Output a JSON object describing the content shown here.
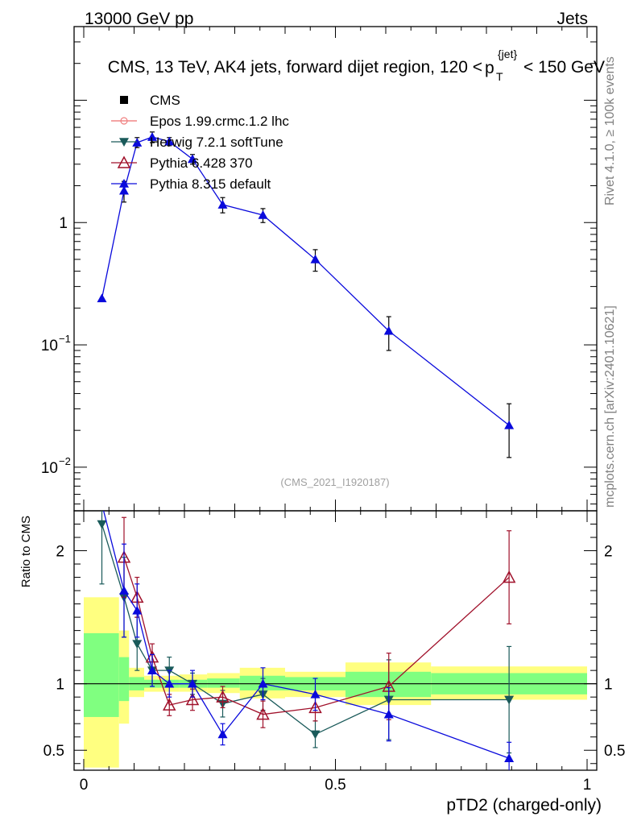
{
  "header": {
    "left": "13000 GeV pp",
    "right": "Jets",
    "title_main": "CMS, 13 TeV, AK4 jets, forward dijet region, 120 <",
    "title_p": "p",
    "title_sup": "{jet}",
    "title_sub": "T",
    "title_end": "< 150 GeV",
    "side_rivet": "Rivet 4.1.0, ≥ 100k events",
    "side_mcplots": "mcplots.cern.ch [arXiv:2401.10621]",
    "analysis_id": "(CMS_2021_I1920187)"
  },
  "chart_data": {
    "type": "line",
    "xlabel": "pTD2 (charged-only)",
    "ylabel_ratio": "Ratio to CMS",
    "xlim": [
      0,
      1
    ],
    "ylim_main_log": [
      0.0044,
      40
    ],
    "ylim_ratio": [
      0.35,
      2.3
    ],
    "x_ticks": [
      "0",
      "0.5",
      "1"
    ],
    "y_ticks_main": [
      {
        "value": 1,
        "base": "1",
        "exp": ""
      },
      {
        "value": 0.1,
        "base": "10",
        "exp": "−1"
      },
      {
        "value": 0.01,
        "base": "10",
        "exp": "−2"
      }
    ],
    "y_ticks_ratio": [
      "0.5",
      "1",
      "2"
    ],
    "legend": [
      {
        "label": "CMS",
        "marker": "square",
        "color": "#000000"
      },
      {
        "label": "Epos 1.99.crmc.1.2 lhc",
        "marker": "cross",
        "color": "#f08080"
      },
      {
        "label": "Herwig 7.2.1 softTune",
        "marker": "triangle-down",
        "color": "#1a5a5a"
      },
      {
        "label": "Pythia 6.428 370",
        "marker": "triangle-open",
        "color": "#a0102a"
      },
      {
        "label": "Pythia 8.315 default",
        "marker": "triangle-up",
        "color": "#0a0adc"
      }
    ],
    "main_series": {
      "name": "Pythia 8.315 default",
      "x": [
        0.036,
        0.08,
        0.106,
        0.136,
        0.17,
        0.216,
        0.276,
        0.356,
        0.46,
        0.606,
        0.845
      ],
      "y": [
        0.24,
        1.82,
        4.5,
        5.0,
        4.6,
        3.3,
        1.4,
        1.15,
        0.5,
        0.13,
        0.022
      ],
      "err_lo": [
        0.0,
        0.35,
        0.4,
        0.5,
        0.35,
        0.3,
        0.2,
        0.15,
        0.1,
        0.04,
        0.01
      ],
      "err_hi": [
        0.0,
        0.35,
        0.45,
        0.5,
        0.35,
        0.3,
        0.2,
        0.15,
        0.1,
        0.04,
        0.011
      ]
    },
    "bands": [
      {
        "x0": 0.0,
        "x1": 0.07,
        "inner": [
          0.75,
          1.38
        ],
        "outer": [
          0.37,
          1.65
        ]
      },
      {
        "x0": 0.07,
        "x1": 0.09,
        "inner": [
          0.87,
          1.2
        ],
        "outer": [
          0.7,
          1.4
        ]
      },
      {
        "x0": 0.09,
        "x1": 0.12,
        "inner": [
          0.95,
          1.05
        ],
        "outer": [
          0.9,
          1.12
        ]
      },
      {
        "x0": 0.12,
        "x1": 0.155,
        "inner": [
          0.97,
          1.03
        ],
        "outer": [
          0.94,
          1.06
        ]
      },
      {
        "x0": 0.155,
        "x1": 0.19,
        "inner": [
          0.97,
          1.03
        ],
        "outer": [
          0.94,
          1.06
        ]
      },
      {
        "x0": 0.19,
        "x1": 0.245,
        "inner": [
          0.97,
          1.03
        ],
        "outer": [
          0.94,
          1.07
        ]
      },
      {
        "x0": 0.245,
        "x1": 0.31,
        "inner": [
          0.97,
          1.04
        ],
        "outer": [
          0.93,
          1.08
        ]
      },
      {
        "x0": 0.31,
        "x1": 0.4,
        "inner": [
          0.95,
          1.06
        ],
        "outer": [
          0.89,
          1.12
        ]
      },
      {
        "x0": 0.4,
        "x1": 0.52,
        "inner": [
          0.95,
          1.05
        ],
        "outer": [
          0.9,
          1.09
        ]
      },
      {
        "x0": 0.52,
        "x1": 0.69,
        "inner": [
          0.9,
          1.09
        ],
        "outer": [
          0.84,
          1.16
        ]
      },
      {
        "x0": 0.69,
        "x1": 1.0,
        "inner": [
          0.92,
          1.08
        ],
        "outer": [
          0.88,
          1.13
        ]
      }
    ],
    "ratio_series": [
      {
        "name": "Herwig 7.2.1 softTune",
        "x": [
          0.036,
          0.08,
          0.106,
          0.136,
          0.17,
          0.216,
          0.276,
          0.356,
          0.46,
          0.606,
          0.845
        ],
        "y": [
          2.2,
          1.65,
          1.3,
          1.1,
          1.1,
          1.0,
          0.85,
          0.92,
          0.62,
          0.88,
          0.88
        ],
        "err": [
          0.45,
          0.3,
          0.2,
          0.12,
          0.1,
          0.08,
          0.1,
          0.12,
          0.1,
          0.3,
          0.4
        ]
      },
      {
        "name": "Pythia 6.428 370",
        "x": [
          0.08,
          0.106,
          0.136,
          0.17,
          0.216,
          0.276,
          0.356,
          0.46,
          0.606,
          0.845
        ],
        "y": [
          1.95,
          1.65,
          1.2,
          0.84,
          0.88,
          0.9,
          0.77,
          0.82,
          0.98,
          1.8
        ],
        "err": [
          0.3,
          0.15,
          0.1,
          0.08,
          0.08,
          0.08,
          0.1,
          0.1,
          0.25,
          0.35
        ]
      },
      {
        "name": "Pythia 8.315 default",
        "x": [
          0.036,
          0.08,
          0.106,
          0.136,
          0.17,
          0.216,
          0.276,
          0.356,
          0.46,
          0.606,
          0.845
        ],
        "y": [
          2.35,
          1.7,
          1.55,
          1.1,
          1.0,
          1.0,
          0.62,
          1.0,
          0.92,
          0.77,
          0.44
        ],
        "err": [
          0.0,
          0.35,
          0.2,
          0.12,
          0.1,
          0.1,
          0.08,
          0.12,
          0.12,
          0.2,
          0.12
        ]
      }
    ]
  }
}
